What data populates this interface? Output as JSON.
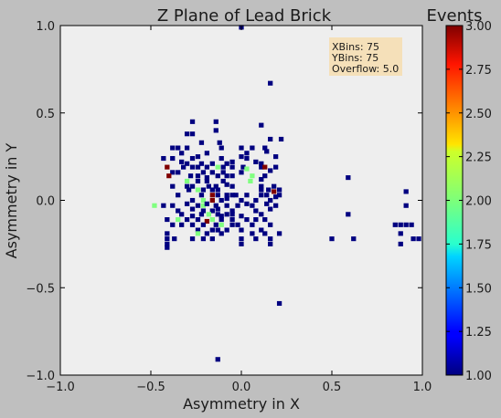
{
  "chart_data": {
    "type": "heatmap",
    "title": "Z Plane of Lead Brick",
    "xlabel": "Asymmetry in X",
    "ylabel": "Asymmetry in Y",
    "xlim": [
      -1.0,
      1.0
    ],
    "ylim": [
      -1.0,
      1.0
    ],
    "x_ticks": [
      "−1.0",
      "−0.5",
      "0.0",
      "0.5",
      "1.0"
    ],
    "y_ticks": [
      "−1.0",
      "−0.5",
      "0.0",
      "0.5",
      "1.0"
    ],
    "x_tick_values": [
      -1.0,
      -0.5,
      0.0,
      0.5,
      1.0
    ],
    "y_tick_values": [
      -1.0,
      -0.5,
      0.0,
      0.5,
      1.0
    ],
    "bins": [
      75,
      75
    ],
    "colorbar": {
      "label": "Events",
      "range": [
        1.0,
        3.0
      ],
      "ticks": [
        "1.00",
        "1.25",
        "1.50",
        "1.75",
        "2.00",
        "2.25",
        "2.50",
        "2.75",
        "3.00"
      ],
      "tick_values": [
        1.0,
        1.25,
        1.5,
        1.75,
        2.0,
        2.25,
        2.5,
        2.75,
        3.0
      ],
      "colormap": "jet"
    },
    "stats": {
      "lines": [
        "XBins: 75",
        "YBins: 75",
        "Overflow: 5.0"
      ]
    },
    "grid": false,
    "plot_background": "#eeeeee",
    "points": [
      [
        0.0,
        0.99,
        1
      ],
      [
        0.16,
        0.67,
        1
      ],
      [
        -0.27,
        0.45,
        1
      ],
      [
        -0.14,
        0.45,
        1
      ],
      [
        0.11,
        0.43,
        1
      ],
      [
        -0.3,
        0.38,
        1
      ],
      [
        -0.27,
        0.38,
        1
      ],
      [
        -0.14,
        0.4,
        1
      ],
      [
        -0.22,
        0.33,
        1
      ],
      [
        -0.12,
        0.33,
        1
      ],
      [
        0.16,
        0.35,
        1
      ],
      [
        0.22,
        0.35,
        1
      ],
      [
        -0.38,
        0.3,
        1
      ],
      [
        -0.35,
        0.3,
        1
      ],
      [
        -0.3,
        0.3,
        1
      ],
      [
        -0.11,
        0.3,
        1
      ],
      [
        0.0,
        0.3,
        1
      ],
      [
        0.06,
        0.3,
        1
      ],
      [
        0.13,
        0.3,
        1
      ],
      [
        -0.33,
        0.27,
        1
      ],
      [
        -0.19,
        0.27,
        1
      ],
      [
        0.03,
        0.27,
        1
      ],
      [
        0.14,
        0.28,
        1
      ],
      [
        -0.43,
        0.24,
        1
      ],
      [
        -0.38,
        0.24,
        1
      ],
      [
        -0.27,
        0.24,
        1
      ],
      [
        -0.24,
        0.25,
        1
      ],
      [
        -0.11,
        0.24,
        1
      ],
      [
        0.0,
        0.25,
        1
      ],
      [
        0.03,
        0.24,
        1
      ],
      [
        0.19,
        0.25,
        1
      ],
      [
        -0.33,
        0.22,
        1
      ],
      [
        -0.3,
        0.21,
        1
      ],
      [
        -0.22,
        0.21,
        1
      ],
      [
        -0.16,
        0.21,
        1
      ],
      [
        -0.08,
        0.21,
        1
      ],
      [
        -0.05,
        0.22,
        1
      ],
      [
        0.08,
        0.22,
        1
      ],
      [
        0.11,
        0.21,
        1
      ],
      [
        -0.41,
        0.19,
        3
      ],
      [
        -0.32,
        0.19,
        1
      ],
      [
        -0.27,
        0.19,
        1
      ],
      [
        -0.24,
        0.19,
        1
      ],
      [
        -0.19,
        0.19,
        1
      ],
      [
        -0.13,
        0.19,
        2
      ],
      [
        -0.1,
        0.19,
        1
      ],
      [
        -0.05,
        0.19,
        1
      ],
      [
        0.01,
        0.19,
        1
      ],
      [
        0.03,
        0.18,
        2
      ],
      [
        0.11,
        0.19,
        1
      ],
      [
        0.13,
        0.19,
        3
      ],
      [
        0.19,
        0.19,
        1
      ],
      [
        -0.38,
        0.16,
        1
      ],
      [
        -0.35,
        0.16,
        1
      ],
      [
        -0.21,
        0.16,
        1
      ],
      [
        -0.16,
        0.16,
        1
      ],
      [
        -0.1,
        0.16,
        1
      ],
      [
        0.0,
        0.16,
        1
      ],
      [
        0.16,
        0.17,
        1
      ],
      [
        -0.4,
        0.14,
        3
      ],
      [
        -0.28,
        0.14,
        1
      ],
      [
        -0.24,
        0.14,
        1
      ],
      [
        -0.19,
        0.13,
        1
      ],
      [
        -0.13,
        0.14,
        1
      ],
      [
        -0.08,
        0.14,
        1
      ],
      [
        -0.05,
        0.14,
        1
      ],
      [
        0.06,
        0.14,
        2
      ],
      [
        0.13,
        0.14,
        1
      ],
      [
        -0.3,
        0.11,
        2
      ],
      [
        -0.24,
        0.11,
        1
      ],
      [
        -0.19,
        0.11,
        1
      ],
      [
        -0.1,
        0.11,
        1
      ],
      [
        0.05,
        0.11,
        2
      ],
      [
        0.11,
        0.12,
        1
      ],
      [
        -0.38,
        0.08,
        1
      ],
      [
        -0.3,
        0.08,
        1
      ],
      [
        -0.27,
        0.08,
        1
      ],
      [
        -0.18,
        0.08,
        1
      ],
      [
        -0.14,
        0.08,
        1
      ],
      [
        -0.08,
        0.09,
        1
      ],
      [
        -0.05,
        0.08,
        1
      ],
      [
        0.11,
        0.08,
        1
      ],
      [
        0.18,
        0.08,
        1
      ],
      [
        -0.29,
        0.06,
        1
      ],
      [
        -0.24,
        0.06,
        2
      ],
      [
        -0.21,
        0.06,
        1
      ],
      [
        -0.16,
        0.06,
        1
      ],
      [
        -0.13,
        0.06,
        1
      ],
      [
        0.11,
        0.06,
        1
      ],
      [
        0.15,
        0.06,
        1
      ],
      [
        0.18,
        0.05,
        3
      ],
      [
        0.21,
        0.06,
        1
      ],
      [
        -0.35,
        0.03,
        1
      ],
      [
        -0.22,
        0.03,
        1
      ],
      [
        -0.16,
        0.03,
        3
      ],
      [
        -0.13,
        0.03,
        1
      ],
      [
        -0.08,
        0.03,
        1
      ],
      [
        -0.05,
        0.03,
        1
      ],
      [
        -0.03,
        0.03,
        1
      ],
      [
        0.03,
        0.03,
        1
      ],
      [
        0.11,
        0.03,
        1
      ],
      [
        0.14,
        0.03,
        1
      ],
      [
        0.19,
        0.02,
        1
      ],
      [
        0.21,
        0.03,
        1
      ],
      [
        -0.27,
        0.0,
        1
      ],
      [
        -0.21,
        0.0,
        2
      ],
      [
        -0.16,
        0.0,
        3
      ],
      [
        -0.11,
        0.0,
        1
      ],
      [
        -0.08,
        0.01,
        1
      ],
      [
        0.0,
        0.0,
        1
      ],
      [
        0.08,
        0.0,
        1
      ],
      [
        0.16,
        0.0,
        1
      ],
      [
        -0.48,
        -0.03,
        2
      ],
      [
        -0.43,
        -0.03,
        1
      ],
      [
        -0.38,
        -0.03,
        1
      ],
      [
        -0.3,
        -0.02,
        1
      ],
      [
        -0.24,
        -0.03,
        1
      ],
      [
        -0.21,
        -0.03,
        2
      ],
      [
        -0.19,
        -0.02,
        1
      ],
      [
        -0.14,
        -0.03,
        1
      ],
      [
        -0.08,
        -0.03,
        1
      ],
      [
        -0.02,
        -0.03,
        1
      ],
      [
        0.03,
        -0.02,
        1
      ],
      [
        0.06,
        -0.03,
        1
      ],
      [
        0.14,
        -0.02,
        1
      ],
      [
        0.19,
        -0.03,
        1
      ],
      [
        -0.35,
        -0.06,
        1
      ],
      [
        -0.27,
        -0.05,
        1
      ],
      [
        -0.21,
        -0.06,
        1
      ],
      [
        -0.16,
        -0.06,
        1
      ],
      [
        -0.13,
        -0.05,
        1
      ],
      [
        -0.05,
        -0.06,
        1
      ],
      [
        0.08,
        -0.06,
        1
      ],
      [
        0.16,
        -0.05,
        1
      ],
      [
        -0.33,
        -0.08,
        1
      ],
      [
        -0.27,
        -0.09,
        1
      ],
      [
        -0.22,
        -0.08,
        1
      ],
      [
        -0.18,
        -0.08,
        2
      ],
      [
        -0.13,
        -0.08,
        1
      ],
      [
        -0.11,
        -0.09,
        1
      ],
      [
        -0.08,
        -0.08,
        1
      ],
      [
        -0.05,
        -0.08,
        1
      ],
      [
        0.0,
        -0.09,
        1
      ],
      [
        0.11,
        -0.08,
        1
      ],
      [
        -0.41,
        -0.11,
        1
      ],
      [
        -0.35,
        -0.11,
        2
      ],
      [
        -0.3,
        -0.11,
        1
      ],
      [
        -0.24,
        -0.11,
        1
      ],
      [
        -0.19,
        -0.12,
        3
      ],
      [
        -0.16,
        -0.11,
        2
      ],
      [
        -0.11,
        -0.11,
        1
      ],
      [
        -0.05,
        -0.11,
        1
      ],
      [
        0.03,
        -0.11,
        1
      ],
      [
        0.08,
        -0.11,
        1
      ],
      [
        0.13,
        -0.11,
        1
      ],
      [
        -0.38,
        -0.14,
        1
      ],
      [
        -0.33,
        -0.14,
        1
      ],
      [
        -0.27,
        -0.14,
        1
      ],
      [
        -0.21,
        -0.14,
        1
      ],
      [
        -0.14,
        -0.14,
        1
      ],
      [
        -0.11,
        -0.14,
        2
      ],
      [
        -0.05,
        -0.14,
        1
      ],
      [
        -0.02,
        -0.14,
        1
      ],
      [
        0.06,
        -0.14,
        1
      ],
      [
        0.16,
        -0.14,
        1
      ],
      [
        -0.24,
        -0.17,
        1
      ],
      [
        -0.16,
        -0.17,
        1
      ],
      [
        -0.13,
        -0.17,
        1
      ],
      [
        -0.08,
        -0.17,
        1
      ],
      [
        0.0,
        -0.17,
        1
      ],
      [
        0.11,
        -0.17,
        1
      ],
      [
        -0.41,
        -0.19,
        1
      ],
      [
        -0.24,
        -0.19,
        2
      ],
      [
        -0.19,
        -0.19,
        1
      ],
      [
        -0.11,
        -0.19,
        1
      ],
      [
        0.06,
        -0.19,
        1
      ],
      [
        0.13,
        -0.19,
        1
      ],
      [
        0.21,
        -0.19,
        1
      ],
      [
        -0.41,
        -0.22,
        1
      ],
      [
        -0.37,
        -0.22,
        1
      ],
      [
        -0.27,
        -0.22,
        1
      ],
      [
        -0.21,
        -0.22,
        1
      ],
      [
        -0.16,
        -0.22,
        1
      ],
      [
        0.0,
        -0.22,
        1
      ],
      [
        0.08,
        -0.22,
        1
      ],
      [
        0.16,
        -0.22,
        1
      ],
      [
        -0.41,
        -0.25,
        1
      ],
      [
        0.0,
        -0.25,
        1
      ],
      [
        0.16,
        -0.25,
        1
      ],
      [
        -0.41,
        -0.27,
        1
      ],
      [
        0.59,
        0.13,
        1
      ],
      [
        0.59,
        -0.08,
        1
      ],
      [
        0.5,
        -0.22,
        1
      ],
      [
        0.62,
        -0.22,
        1
      ],
      [
        0.91,
        0.05,
        1
      ],
      [
        0.91,
        -0.03,
        1
      ],
      [
        0.85,
        -0.14,
        1
      ],
      [
        0.88,
        -0.14,
        1
      ],
      [
        0.91,
        -0.14,
        1
      ],
      [
        0.94,
        -0.14,
        1
      ],
      [
        0.88,
        -0.19,
        1
      ],
      [
        0.95,
        -0.22,
        1
      ],
      [
        0.98,
        -0.22,
        1
      ],
      [
        0.88,
        -0.25,
        1
      ],
      [
        0.21,
        -0.59,
        1
      ],
      [
        -0.13,
        -0.91,
        1
      ]
    ]
  }
}
